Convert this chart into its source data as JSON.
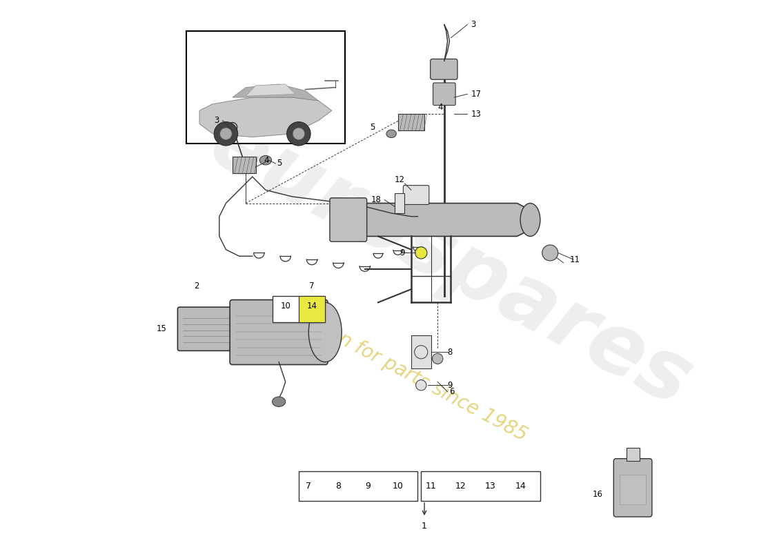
{
  "bg": "#ffffff",
  "wm1_text": "eurospares",
  "wm1_color": "#c8c8c8",
  "wm1_alpha": 0.3,
  "wm2_text": "a passion for parts since 1985",
  "wm2_color": "#ccaa00",
  "wm2_alpha": 0.5,
  "line_color": "#333333",
  "part_color": "#bbbbbb",
  "part_dark": "#888888",
  "part_light": "#e0e0e0",
  "yellow_hl": "#e8e840",
  "fig_w": 11.0,
  "fig_h": 8.0,
  "xmin": 0,
  "xmax": 110,
  "ymin": 0,
  "ymax": 80
}
